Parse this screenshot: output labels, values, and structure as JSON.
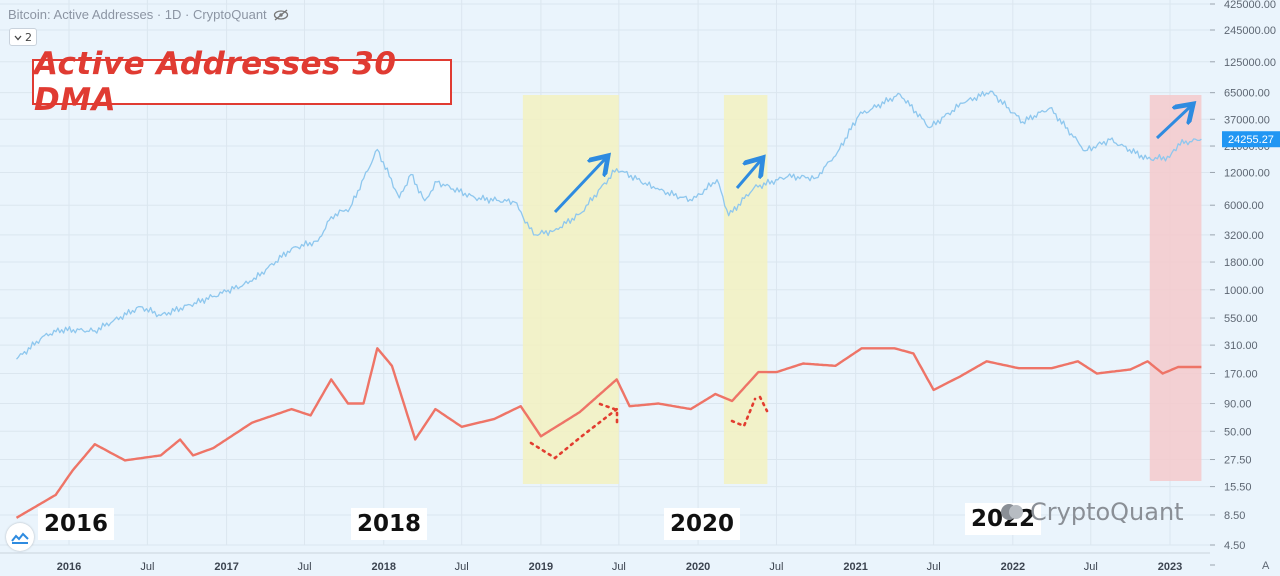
{
  "header": {
    "title": "Bitcoin: Active Addresses · 1D · CryptoQuant",
    "badge_value": "2",
    "eye_icon": "eye-slash-icon"
  },
  "overlay_title": "Active Addresses 30 DMA",
  "year_labels": [
    "2016",
    "2018",
    "2020",
    "2022"
  ],
  "watermark": "CryptoQuant",
  "colors": {
    "price_line": "#8ec7ee",
    "active_addresses_line": "#ee7467",
    "highlight_yellow": "#f3f1bf",
    "highlight_red": "#f4c9cb",
    "arrow": "#2e8be0",
    "dotted": "#e23d30",
    "price_label_bg": "#2196f3",
    "title_red": "#e03b32"
  },
  "chart_data": {
    "type": "line",
    "x_axis": {
      "tick_labels": [
        "2016",
        "Jul",
        "2017",
        "Jul",
        "2018",
        "Jul",
        "2019",
        "Jul",
        "2020",
        "Jul",
        "2021",
        "Jul",
        "2022",
        "Jul",
        "2023"
      ],
      "range": [
        "2015-09-01",
        "2023-03-20"
      ]
    },
    "y_axis": {
      "scale": "log",
      "position": "right",
      "tick_labels": [
        "425000.00",
        "245000.00",
        "125000.00",
        "65000.00",
        "37000.00",
        "21000.00",
        "12000.00",
        "6000.00",
        "3200.00",
        "1800.00",
        "1000.00",
        "550.00",
        "310.00",
        "170.00",
        "90.00",
        "50.00",
        "27.50",
        "15.50",
        "8.50",
        "4.50",
        "A"
      ],
      "current_price_label": "24255.27"
    },
    "grid": true,
    "series": [
      {
        "key": "price",
        "points": [
          [
            "2015-09-01",
            230
          ],
          [
            "2015-11-05",
            380
          ],
          [
            "2015-12-15",
            430
          ],
          [
            "2016-03-01",
            420
          ],
          [
            "2016-06-15",
            700
          ],
          [
            "2016-08-01",
            580
          ],
          [
            "2016-12-31",
            960
          ],
          [
            "2017-03-01",
            1200
          ],
          [
            "2017-06-01",
            2400
          ],
          [
            "2017-08-01",
            2800
          ],
          [
            "2017-09-01",
            4700
          ],
          [
            "2017-10-15",
            5700
          ],
          [
            "2017-12-17",
            19500
          ],
          [
            "2018-02-06",
            7000
          ],
          [
            "2018-03-05",
            11500
          ],
          [
            "2018-04-06",
            6600
          ],
          [
            "2018-05-05",
            9800
          ],
          [
            "2018-08-01",
            7000
          ],
          [
            "2018-11-01",
            6400
          ],
          [
            "2018-12-15",
            3200
          ],
          [
            "2019-02-01",
            3500
          ],
          [
            "2019-04-02",
            5000
          ],
          [
            "2019-06-26",
            13000
          ],
          [
            "2019-09-24",
            8500
          ],
          [
            "2019-12-18",
            6600
          ],
          [
            "2020-02-14",
            10300
          ],
          [
            "2020-03-12",
            4800
          ],
          [
            "2020-05-10",
            8700
          ],
          [
            "2020-07-27",
            11000
          ],
          [
            "2020-10-01",
            10700
          ],
          [
            "2020-11-20",
            18500
          ],
          [
            "2021-01-08",
            40000
          ],
          [
            "2021-04-14",
            63000
          ],
          [
            "2021-06-22",
            31000
          ],
          [
            "2021-09-06",
            52000
          ],
          [
            "2021-11-10",
            67000
          ],
          [
            "2022-01-24",
            35000
          ],
          [
            "2022-03-28",
            47000
          ],
          [
            "2022-06-18",
            19000
          ],
          [
            "2022-08-15",
            24000
          ],
          [
            "2022-11-09",
            16000
          ],
          [
            "2022-12-31",
            16500
          ],
          [
            "2023-01-20",
            22000
          ],
          [
            "2023-03-15",
            24255
          ]
        ]
      },
      {
        "key": "active_addresses_30dma",
        "points": [
          [
            "2015-09-01",
            8
          ],
          [
            "2015-12-01",
            13
          ],
          [
            "2016-01-10",
            22
          ],
          [
            "2016-03-01",
            38
          ],
          [
            "2016-05-10",
            27
          ],
          [
            "2016-08-01",
            30
          ],
          [
            "2016-09-15",
            42
          ],
          [
            "2016-10-15",
            30
          ],
          [
            "2016-12-01",
            35
          ],
          [
            "2017-03-01",
            60
          ],
          [
            "2017-06-01",
            80
          ],
          [
            "2017-07-15",
            70
          ],
          [
            "2017-09-01",
            150
          ],
          [
            "2017-10-10",
            90
          ],
          [
            "2017-11-15",
            90
          ],
          [
            "2017-12-17",
            290
          ],
          [
            "2018-01-20",
            200
          ],
          [
            "2018-03-15",
            42
          ],
          [
            "2018-05-01",
            80
          ],
          [
            "2018-07-01",
            55
          ],
          [
            "2018-09-15",
            65
          ],
          [
            "2018-11-15",
            85
          ],
          [
            "2019-01-01",
            45
          ],
          [
            "2019-04-01",
            75
          ],
          [
            "2019-06-26",
            150
          ],
          [
            "2019-07-26",
            85
          ],
          [
            "2019-10-01",
            90
          ],
          [
            "2019-12-15",
            80
          ],
          [
            "2020-02-10",
            110
          ],
          [
            "2020-03-20",
            95
          ],
          [
            "2020-05-20",
            175
          ],
          [
            "2020-07-01",
            175
          ],
          [
            "2020-09-01",
            210
          ],
          [
            "2020-11-15",
            200
          ],
          [
            "2021-01-15",
            290
          ],
          [
            "2021-04-01",
            290
          ],
          [
            "2021-05-15",
            260
          ],
          [
            "2021-07-01",
            120
          ],
          [
            "2021-09-01",
            160
          ],
          [
            "2021-11-01",
            220
          ],
          [
            "2022-01-15",
            190
          ],
          [
            "2022-04-01",
            190
          ],
          [
            "2022-06-01",
            220
          ],
          [
            "2022-07-15",
            170
          ],
          [
            "2022-10-01",
            185
          ],
          [
            "2022-11-10",
            220
          ],
          [
            "2022-12-15",
            170
          ],
          [
            "2023-01-20",
            195
          ],
          [
            "2023-03-15",
            195
          ]
        ]
      }
    ],
    "highlight_regions": [
      {
        "color": "yellow",
        "x": [
          "2018-11-20",
          "2019-07-01"
        ]
      },
      {
        "color": "yellow",
        "x": [
          "2020-03-01",
          "2020-06-10"
        ]
      },
      {
        "color": "red",
        "x": [
          "2022-11-15",
          "2023-03-15"
        ]
      }
    ]
  }
}
